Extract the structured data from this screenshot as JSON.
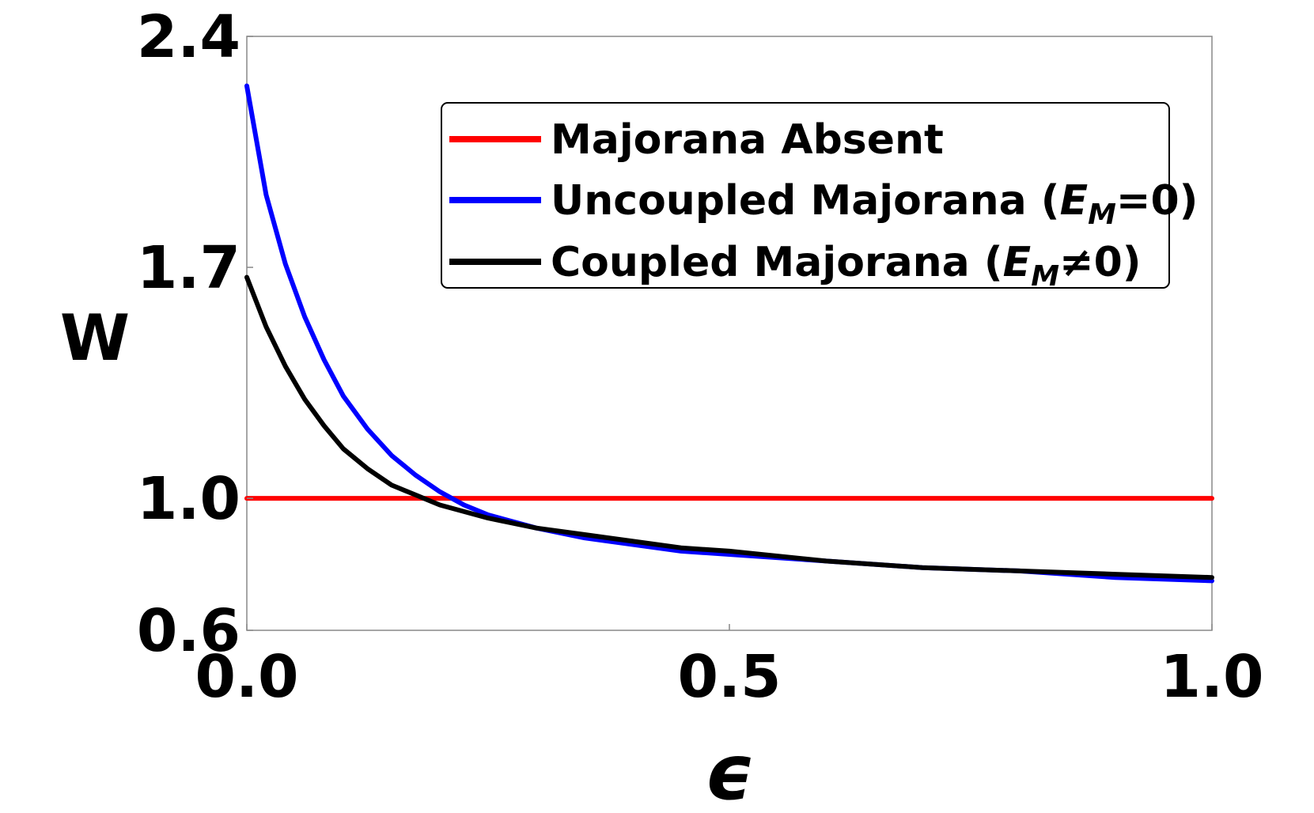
{
  "chart_data": {
    "type": "line",
    "xlabel": "ϵ",
    "ylabel": "W",
    "xlim": [
      0.0,
      1.0
    ],
    "ylim": [
      0.6,
      2.4
    ],
    "xticks": [
      "0.0",
      "0.5",
      "1.0"
    ],
    "yticks": [
      "0.6",
      "1.0",
      "1.7",
      "2.4"
    ],
    "ytick_values": [
      0.6,
      1.0,
      1.7,
      2.4
    ],
    "xtick_values": [
      0.0,
      0.5,
      1.0
    ],
    "grid": false,
    "legend_position": "top-right",
    "series": [
      {
        "name": "Majorana Absent",
        "legend_main": "Majorana Absent",
        "legend_var": "",
        "legend_sub": "",
        "legend_tail": "",
        "color": "#ff0000",
        "x": [
          0.0,
          0.1,
          0.2,
          0.3,
          0.4,
          0.5,
          0.6,
          0.7,
          0.8,
          0.9,
          1.0
        ],
        "y": [
          1.0,
          1.0,
          1.0,
          1.0,
          1.0,
          1.0,
          1.0,
          1.0,
          1.0,
          1.0,
          1.0
        ]
      },
      {
        "name": "Uncoupled Majorana (EM=0)",
        "legend_main": "Uncoupled Majorana (",
        "legend_var": "E",
        "legend_sub": "M",
        "legend_tail": "=0)",
        "color": "#0000ff",
        "x": [
          0.0,
          0.02,
          0.04,
          0.06,
          0.08,
          0.1,
          0.125,
          0.15,
          0.175,
          0.2,
          0.225,
          0.25,
          0.3,
          0.35,
          0.4,
          0.45,
          0.5,
          0.6,
          0.7,
          0.8,
          0.9,
          1.0
        ],
        "y": [
          2.25,
          1.92,
          1.71,
          1.55,
          1.42,
          1.31,
          1.21,
          1.13,
          1.07,
          1.02,
          0.98,
          0.95,
          0.91,
          0.88,
          0.86,
          0.84,
          0.83,
          0.81,
          0.79,
          0.78,
          0.76,
          0.75
        ]
      },
      {
        "name": "Coupled Majorana (EM≠0)",
        "legend_main": "Coupled Majorana (",
        "legend_var": "E",
        "legend_sub": "M",
        "legend_tail": "≠0)",
        "color": "#000000",
        "x": [
          0.0,
          0.02,
          0.04,
          0.06,
          0.08,
          0.1,
          0.125,
          0.15,
          0.175,
          0.2,
          0.25,
          0.3,
          0.35,
          0.4,
          0.45,
          0.5,
          0.6,
          0.7,
          0.8,
          0.9,
          1.0
        ],
        "y": [
          1.67,
          1.52,
          1.4,
          1.3,
          1.22,
          1.15,
          1.09,
          1.04,
          1.01,
          0.98,
          0.94,
          0.91,
          0.89,
          0.87,
          0.85,
          0.84,
          0.81,
          0.79,
          0.78,
          0.77,
          0.76
        ]
      }
    ]
  }
}
